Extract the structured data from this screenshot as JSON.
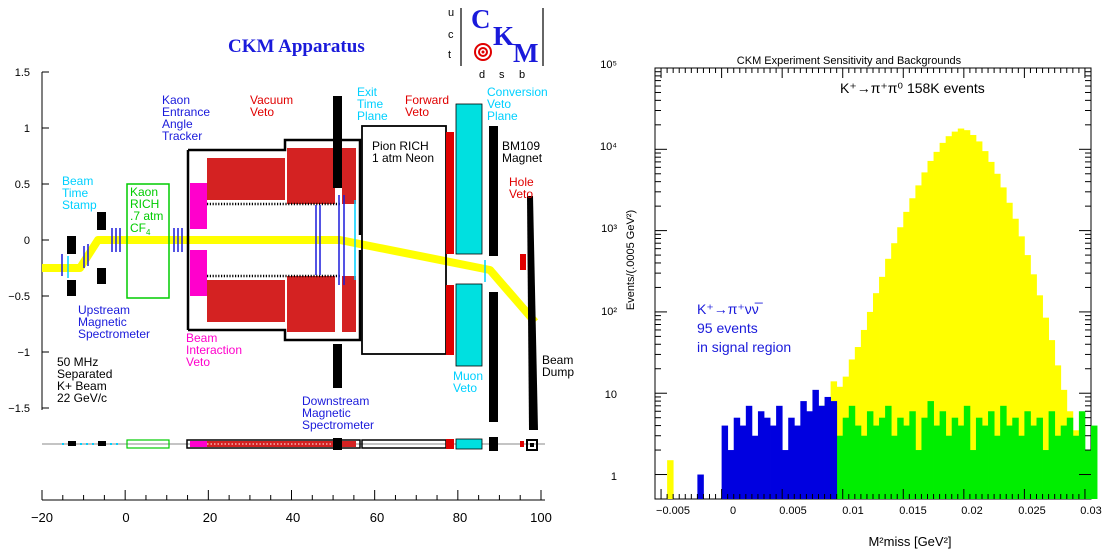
{
  "left_panel": {
    "title": "CKM Apparatus",
    "logo": {
      "letters": [
        "C",
        "K",
        "M"
      ],
      "rows": [
        "u",
        "c",
        "t"
      ],
      "cols": [
        "d",
        "s",
        "b"
      ]
    },
    "y_ticks": [
      "1.5",
      "1",
      "0.5",
      "0",
      "−0.5",
      "−1",
      "−1.5"
    ],
    "x_ticks": [
      "−20",
      "0",
      "20",
      "40",
      "60",
      "80",
      "100"
    ],
    "labels": {
      "beam_time_stamp": [
        "Beam",
        "Time",
        "Stamp"
      ],
      "kaon_rich": [
        "Kaon",
        "RICH",
        ".7 atm",
        "CF"
      ],
      "kaon_rich_sub": "4",
      "kaon_entrance": [
        "Kaon",
        "Entrance",
        "Angle",
        "Tracker"
      ],
      "vacuum_veto": [
        "Vacuum",
        "Veto"
      ],
      "exit_time_plane": [
        "Exit",
        "Time",
        "Plane"
      ],
      "forward_veto": [
        "Forward",
        "Veto"
      ],
      "conversion_veto": [
        "Conversion",
        "Veto",
        "Plane"
      ],
      "pion_rich": [
        "Pion  RICH",
        "1 atm Neon"
      ],
      "bm109": [
        "BM109",
        "Magnet"
      ],
      "hole_veto": [
        "Hole",
        "Veto"
      ],
      "upstream": [
        "Upstream",
        "Magnetic",
        "Spectrometer"
      ],
      "beam_interaction": [
        "Beam",
        "Interaction",
        "Veto"
      ],
      "beam_info": [
        "50 MHz",
        "Separated",
        "K+ Beam",
        "22 GeV/c"
      ],
      "downstream": [
        "Downstream",
        "Magnetic",
        "Spectrometer"
      ],
      "muon_veto": [
        "Muon",
        "Veto"
      ],
      "beam_dump": [
        "Beam",
        "Dump"
      ]
    }
  },
  "chart_data": {
    "type": "bar",
    "title": "CKM Experiment Sensitivity and Backgrounds",
    "xlabel": "M²miss  [GeV²]",
    "ylabel": "Events/(.0005 GeV²)",
    "xlim": [
      -0.0055,
      0.0305
    ],
    "ylim": [
      0.5,
      100000
    ],
    "y_scale": "log",
    "x_ticks": [
      "−0.005",
      "0",
      "0.005",
      "0.01",
      "0.015",
      "0.02",
      "0.025",
      "0.03"
    ],
    "y_ticks": [
      "1",
      "10",
      "10²",
      "10³",
      "10⁴",
      "10⁵"
    ],
    "annotations": {
      "main": "K⁺→π⁺π⁰ 158K events",
      "signal_1": "K⁺→π⁺νν̅",
      "signal_2": "95 events",
      "signal_3": "in signal region"
    },
    "series": [
      {
        "key": "pipi0",
        "color": "#ffff00",
        "x0": -0.0045,
        "bin": 0.0005,
        "values": [
          1.5,
          0,
          0,
          0,
          0,
          0,
          0,
          0,
          0,
          0,
          0,
          0,
          0,
          0,
          0,
          0,
          0,
          0,
          0,
          0,
          0,
          0,
          0,
          0,
          0,
          5,
          8,
          14,
          12,
          16,
          26,
          37,
          60,
          100,
          170,
          270,
          450,
          700,
          1100,
          1700,
          2500,
          3600,
          5200,
          7200,
          9300,
          12000,
          14500,
          16500,
          18000,
          17200,
          15000,
          12500,
          9500,
          7000,
          5000,
          3400,
          2200,
          1400,
          850,
          500,
          290,
          160,
          85,
          45,
          22,
          11,
          6,
          3.5,
          2,
          1.5,
          0,
          0,
          0,
          0
        ]
      },
      {
        "key": "background",
        "color": "#00ee00",
        "x0": 0.008,
        "bin": 0.0005,
        "values": [
          7,
          5,
          7,
          3,
          5,
          7,
          4,
          3,
          6,
          4,
          5,
          7,
          3,
          5,
          4,
          6,
          2,
          5,
          8,
          4,
          6,
          3,
          5,
          4,
          7,
          2,
          5,
          4,
          6,
          3,
          7,
          4,
          5,
          3,
          6,
          4,
          5,
          2,
          6,
          3,
          4,
          5,
          3,
          6,
          2,
          4
        ]
      },
      {
        "key": "signal",
        "color": "#0000e0",
        "x0": -0.004,
        "bin": 0.0005,
        "values": [
          0,
          0,
          0,
          0,
          1,
          0,
          0,
          0,
          4,
          2,
          5,
          4,
          7,
          3,
          6,
          5,
          4,
          7,
          2,
          5,
          4,
          8,
          6,
          11,
          7,
          9,
          8
        ]
      }
    ]
  }
}
